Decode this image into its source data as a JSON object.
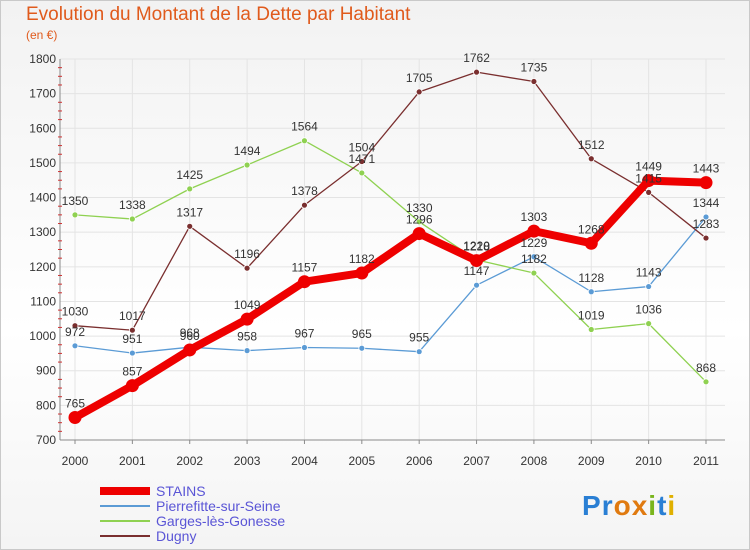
{
  "header": {
    "title": "Evolution du Montant de la Dette par Habitant",
    "subtitle": "(en €)"
  },
  "logo": {
    "letters": [
      {
        "ch": "P",
        "color": "#2a7fd4"
      },
      {
        "ch": "r",
        "color": "#2a7fd4"
      },
      {
        "ch": "o",
        "color": "#e07a10"
      },
      {
        "ch": "x",
        "color": "#e07a10"
      },
      {
        "ch": "i",
        "color": "#7ab51d"
      },
      {
        "ch": "t",
        "color": "#2a7fd4"
      },
      {
        "ch": "i",
        "color": "#e0b000"
      }
    ],
    "text": "Proxiti"
  },
  "chart_data": {
    "type": "line",
    "title": "Evolution du Montant de la Dette par Habitant",
    "ylabel": "(en €)",
    "xlabel": "",
    "x": [
      "2000",
      "2001",
      "2002",
      "2003",
      "2004",
      "2005",
      "2006",
      "2007",
      "2008",
      "2009",
      "2010",
      "2011"
    ],
    "ylim": [
      700,
      1800
    ],
    "yticks": [
      700,
      800,
      900,
      1000,
      1100,
      1200,
      1300,
      1400,
      1500,
      1600,
      1700,
      1800
    ],
    "grid": true,
    "legend_position": "bottom-left",
    "series": [
      {
        "name": "STAINS",
        "color": "#ee0000",
        "emphasis": true,
        "values": [
          765,
          857,
          960,
          1049,
          1157,
          1182,
          1296,
          1218,
          1303,
          1268,
          1449,
          1443
        ]
      },
      {
        "name": "Pierrefitte-sur-Seine",
        "color": "#5b9bd5",
        "emphasis": false,
        "values": [
          972,
          951,
          968,
          958,
          967,
          965,
          955,
          1147,
          1229,
          1128,
          1143,
          1344
        ]
      },
      {
        "name": "Garges-lès-Gonesse",
        "color": "#8fd151",
        "emphasis": false,
        "values": [
          1350,
          1338,
          1425,
          1494,
          1564,
          1471,
          1330,
          1220,
          1182,
          1019,
          1036,
          868
        ]
      },
      {
        "name": "Dugny",
        "color": "#7a2f2f",
        "emphasis": false,
        "values": [
          1030,
          1017,
          1317,
          1196,
          1378,
          1504,
          1705,
          1762,
          1735,
          1512,
          1415,
          1283
        ]
      }
    ]
  }
}
